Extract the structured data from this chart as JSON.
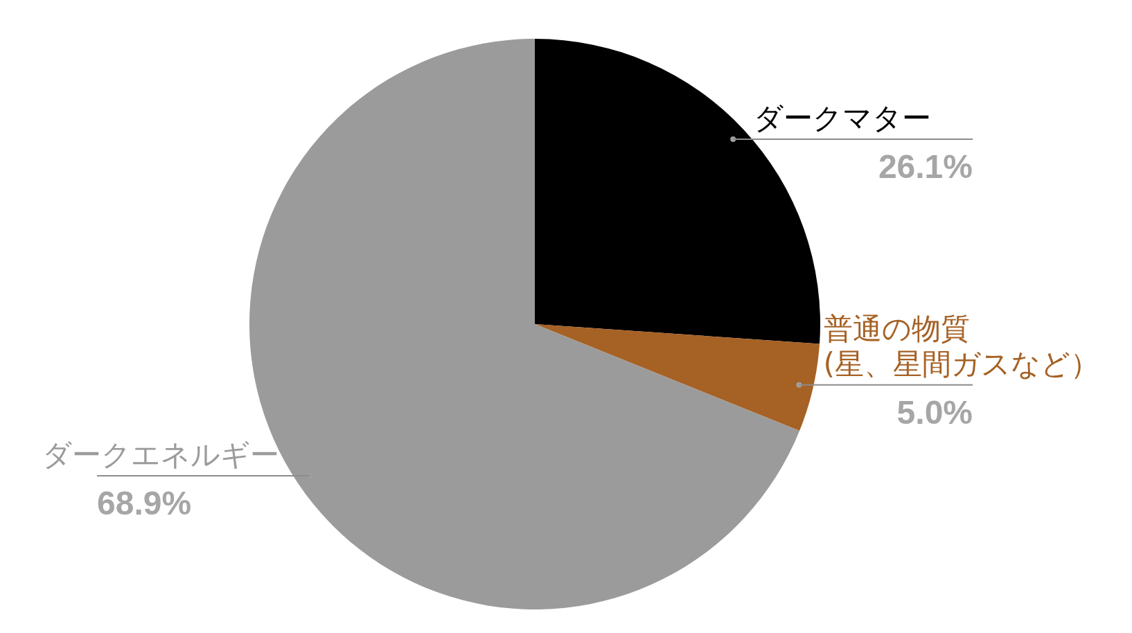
{
  "chart_data": {
    "type": "pie",
    "categories": [
      "ダークマター",
      "普通の物質\n(星、星間ガスなど）",
      "ダークエネルギー"
    ],
    "values": [
      26.1,
      5.0,
      68.9
    ],
    "colors": [
      "#000000",
      "#a66124",
      "#9b9b9b"
    ],
    "value_labels": [
      "26.1%",
      "5.0%",
      "68.9%"
    ],
    "legend": false
  }
}
